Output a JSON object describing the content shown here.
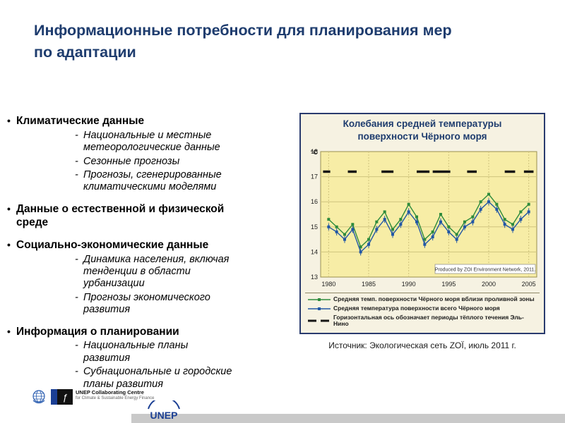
{
  "slide": {
    "title_line1": "Информационные потребности для планирования мер",
    "title_line2": "по адаптации"
  },
  "glyphs": {
    "bullet": "•",
    "sub_bullet": "-"
  },
  "bullets": [
    {
      "label": "Климатические данные",
      "subs": [
        "Национальные и местные метеорологические данные",
        "Сезонные прогнозы",
        "Прогнозы, сгенерированные климатическими моделями"
      ]
    },
    {
      "label": "Данные о естественной и физической среде",
      "subs": []
    },
    {
      "label": "Социально-экономические данные",
      "subs": [
        "Динамика населения, включая тенденции в области урбанизации",
        "Прогнозы экономического развития"
      ]
    },
    {
      "label": "Информация о планировании",
      "subs": [
        "Национальные планы развития",
        "Субнациональные и городские планы развития"
      ]
    }
  ],
  "chart": {
    "title_line1": "Колебания средней температуры",
    "title_line2": "поверхности Чёрного моря",
    "credit": "Produced by ZOI Environment Network, 2011.",
    "legend": [
      {
        "label": "Средняя темп. поверхности Чёрного моря вблизи проливной зоны",
        "color": "#2e8b3c",
        "style": "line-marker"
      },
      {
        "label": "Средняя температура поверхности всего Чёрного моря",
        "color": "#2257a5",
        "style": "line-marker"
      },
      {
        "label": "Горизонтальная ось обозначает периоды тёплого течения Эль-Нино",
        "color": "#151515",
        "style": "dash"
      }
    ],
    "source_caption": "Источник: Экологическая сеть ZOЇ, июль 2011 г.",
    "colors": {
      "plot_bg": "#f7eda6",
      "grid": "#cfc47e",
      "border": "#2a3b6e"
    }
  },
  "chart_data": {
    "type": "line",
    "title": "Колебания средней температуры поверхности Чёрного моря",
    "ylabel": "°C",
    "ylim": [
      13,
      18
    ],
    "xlim": [
      1979,
      2006
    ],
    "y_ticks": [
      13,
      14,
      15,
      16,
      17,
      18
    ],
    "x_ticks": [
      1980,
      1985,
      1990,
      1995,
      2000,
      2005
    ],
    "x": [
      1980,
      1981,
      1982,
      1983,
      1984,
      1985,
      1986,
      1987,
      1988,
      1989,
      1990,
      1991,
      1992,
      1993,
      1994,
      1995,
      1996,
      1997,
      1998,
      1999,
      2000,
      2001,
      2002,
      2003,
      2004,
      2005
    ],
    "series": [
      {
        "name": "Средняя темп. поверхности Чёрного моря вблизи проливной зоны",
        "color": "#2e8b3c",
        "values": [
          15.3,
          15.0,
          14.7,
          15.1,
          14.2,
          14.5,
          15.2,
          15.6,
          14.9,
          15.3,
          15.9,
          15.4,
          14.5,
          14.8,
          15.5,
          15.0,
          14.7,
          15.2,
          15.4,
          16.0,
          16.3,
          15.9,
          15.3,
          15.1,
          15.6,
          15.9
        ]
      },
      {
        "name": "Средняя температура поверхности всего Чёрного моря",
        "color": "#2257a5",
        "values": [
          15.0,
          14.8,
          14.5,
          14.9,
          14.0,
          14.3,
          14.9,
          15.3,
          14.7,
          15.1,
          15.6,
          15.2,
          14.3,
          14.6,
          15.2,
          14.8,
          14.5,
          15.0,
          15.2,
          15.7,
          16.0,
          15.7,
          15.1,
          14.9,
          15.3,
          15.6
        ]
      }
    ],
    "el_nino_marker_y": 17.2,
    "el_nino_periods": [
      [
        1979.3,
        1980.2
      ],
      [
        1982.4,
        1983.5
      ],
      [
        1986.6,
        1988.1
      ],
      [
        1991.0,
        1992.6
      ],
      [
        1993.0,
        1995.2
      ],
      [
        1997.3,
        1998.5
      ],
      [
        2002.0,
        2003.3
      ],
      [
        2004.4,
        2005.6
      ]
    ],
    "grid": true,
    "legend_position": "bottom"
  },
  "footer": {
    "fs_glyph": "ƒ",
    "centre_name": "UNEP Collaborating Centre",
    "centre_sub": "for Climate & Sustainable Energy Finance",
    "unep_wordmark": "UNEP"
  }
}
